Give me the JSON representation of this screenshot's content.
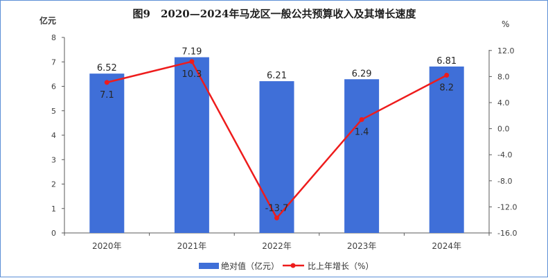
{
  "chart_data": {
    "type": "bar",
    "title": "图9　2020—2024年马龙区一般公共预算收入及其增长速度",
    "categories": [
      "2020年",
      "2021年",
      "2022年",
      "2023年",
      "2024年"
    ],
    "left_axis": {
      "unit": "亿元",
      "ylim": [
        0,
        8
      ],
      "ticks": [
        "0",
        "1",
        "2",
        "3",
        "4",
        "5",
        "6",
        "7",
        "8"
      ]
    },
    "right_axis": {
      "unit": "%",
      "ylim": [
        -16,
        14
      ],
      "ticks": [
        "-16.0",
        "-12.0",
        "-8.0",
        "-4.0",
        "0.0",
        "4.0",
        "8.0",
        "12.0"
      ]
    },
    "series": [
      {
        "name": "绝对值（亿元）",
        "type": "bar",
        "axis": "left",
        "color": "#3f6fd8",
        "values": [
          6.52,
          7.19,
          6.21,
          6.29,
          6.81
        ],
        "labels": [
          "6.52",
          "7.19",
          "6.21",
          "6.29",
          "6.81"
        ]
      },
      {
        "name": "比上年增长（%）",
        "type": "line",
        "axis": "right",
        "color": "#ee1c1c",
        "values": [
          7.1,
          10.3,
          -13.7,
          1.4,
          8.2
        ],
        "labels": [
          "7.1",
          "10.3",
          "-13.7",
          "1.4",
          "8.2"
        ]
      }
    ],
    "grid": false,
    "legend_position": "bottom"
  }
}
